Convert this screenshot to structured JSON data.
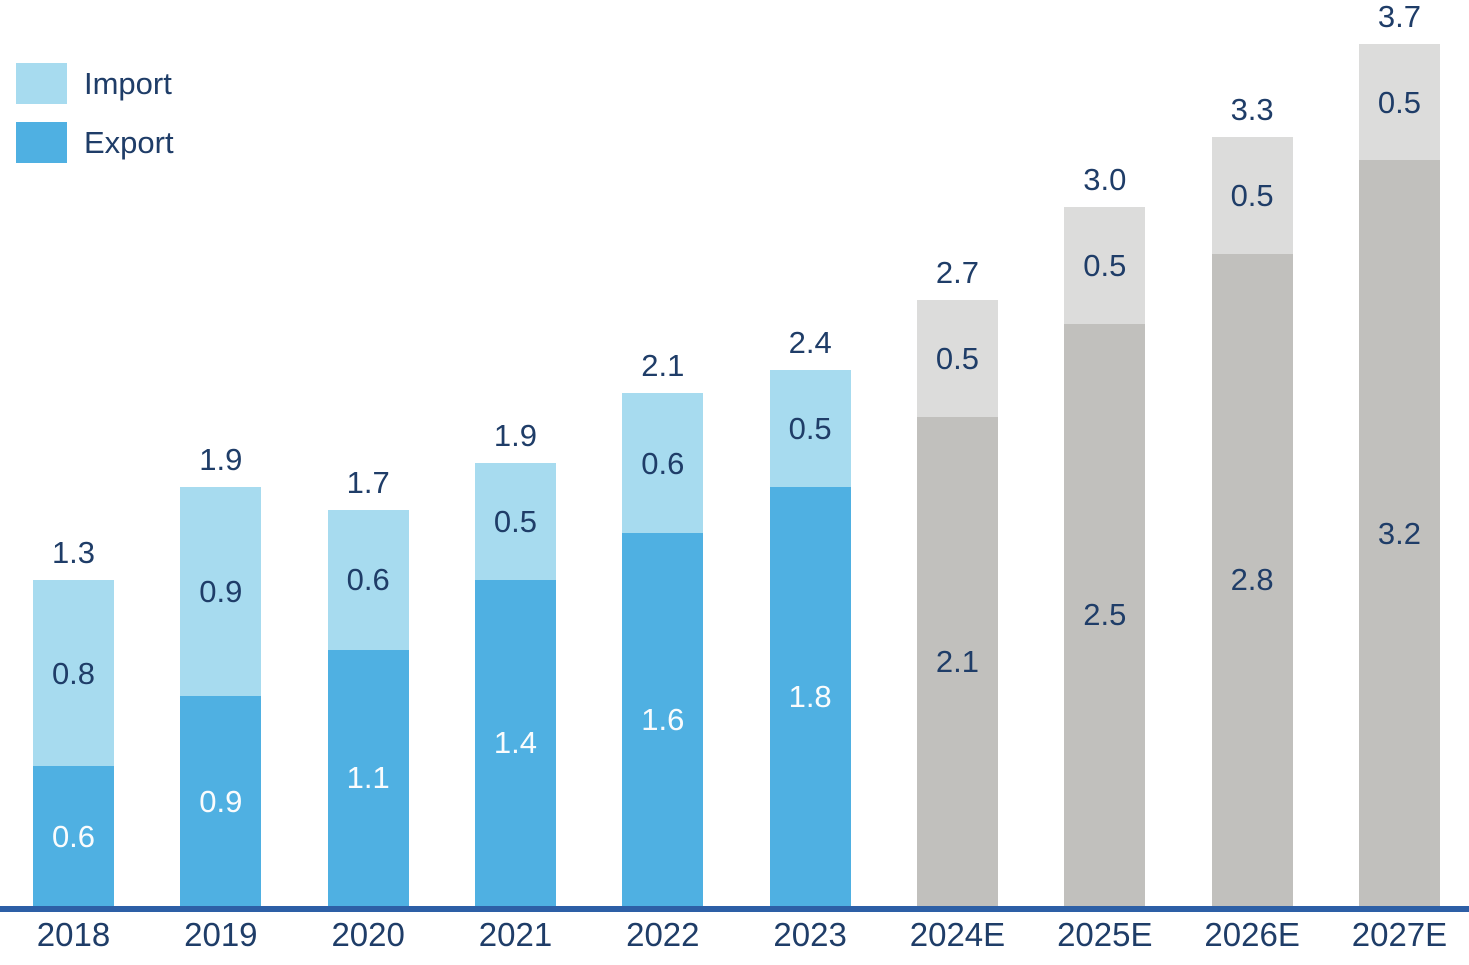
{
  "chart_data": {
    "type": "bar",
    "stacked": true,
    "title": "",
    "categories": [
      "2018",
      "2019",
      "2020",
      "2021",
      "2022",
      "2023",
      "2024E",
      "2025E",
      "2026E",
      "2027E"
    ],
    "series": [
      {
        "name": "Export",
        "values": [
          0.6,
          0.9,
          1.1,
          1.4,
          1.6,
          1.8,
          2.1,
          2.5,
          2.8,
          3.2
        ],
        "labels": [
          "0.6",
          "0.9",
          "1.1",
          "1.4",
          "1.6",
          "1.8",
          "2.1",
          "2.5",
          "2.8",
          "3.2"
        ]
      },
      {
        "name": "Import",
        "values": [
          0.8,
          0.9,
          0.6,
          0.5,
          0.6,
          0.5,
          0.5,
          0.5,
          0.5,
          0.5
        ],
        "labels": [
          "0.8",
          "0.9",
          "0.6",
          "0.5",
          "0.6",
          "0.5",
          "0.5",
          "0.5",
          "0.5",
          "0.5"
        ]
      }
    ],
    "totals": [
      1.3,
      1.9,
      1.7,
      1.9,
      2.1,
      2.4,
      2.7,
      3.0,
      3.3,
      3.7
    ],
    "total_labels": [
      "1.3",
      "1.9",
      "1.7",
      "1.9",
      "2.1",
      "2.4",
      "2.7",
      "3.0",
      "3.3",
      "3.7"
    ],
    "estimate_from_index": 6,
    "legend": {
      "position": "top-left",
      "items": [
        {
          "label": "Import"
        },
        {
          "label": "Export"
        }
      ]
    },
    "colors": {
      "export_actual": "#4fb0e2",
      "import_actual": "#a7dbef",
      "export_estimate": "#c1c0bd",
      "import_estimate": "#dcdcdb",
      "label_navy": "#1f3d68",
      "label_on_export": "#fafcfd",
      "axis_line": "#2d5fa6"
    },
    "axis": {
      "baseline": true,
      "grid": false,
      "y_axis_visible": false
    }
  }
}
